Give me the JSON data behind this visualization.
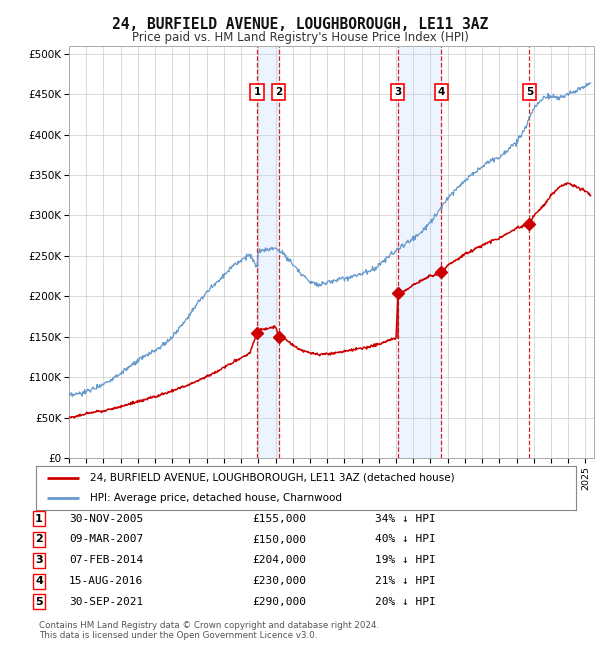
{
  "title": "24, BURFIELD AVENUE, LOUGHBOROUGH, LE11 3AZ",
  "subtitle": "Price paid vs. HM Land Registry's House Price Index (HPI)",
  "xlim_start": 1995.0,
  "xlim_end": 2025.5,
  "ylim_min": 0,
  "ylim_max": 510000,
  "yticks": [
    0,
    50000,
    100000,
    150000,
    200000,
    250000,
    300000,
    350000,
    400000,
    450000,
    500000
  ],
  "ytick_labels": [
    "£0",
    "£50K",
    "£100K",
    "£150K",
    "£200K",
    "£250K",
    "£300K",
    "£350K",
    "£400K",
    "£450K",
    "£500K"
  ],
  "hpi_color": "#6699cc",
  "price_color": "#cc0000",
  "vline_color": "#cc0000",
  "shade_color": "#ddeeff",
  "grid_color": "#cccccc",
  "background_color": "#ffffff",
  "sales": [
    {
      "num": 1,
      "date_str": "30-NOV-2005",
      "price": 155000,
      "pct": "34%",
      "x": 2005.92
    },
    {
      "num": 2,
      "date_str": "09-MAR-2007",
      "price": 150000,
      "pct": "40%",
      "x": 2007.19
    },
    {
      "num": 3,
      "date_str": "07-FEB-2014",
      "price": 204000,
      "pct": "19%",
      "x": 2014.11
    },
    {
      "num": 4,
      "date_str": "15-AUG-2016",
      "price": 230000,
      "pct": "21%",
      "x": 2016.63
    },
    {
      "num": 5,
      "date_str": "30-SEP-2021",
      "price": 290000,
      "pct": "20%",
      "x": 2021.75
    }
  ],
  "legend_line1": "24, BURFIELD AVENUE, LOUGHBOROUGH, LE11 3AZ (detached house)",
  "legend_line2": "HPI: Average price, detached house, Charnwood",
  "footnote1": "Contains HM Land Registry data © Crown copyright and database right 2024.",
  "footnote2": "This data is licensed under the Open Government Licence v3.0.",
  "xtick_years": [
    1995,
    1996,
    1997,
    1998,
    1999,
    2000,
    2001,
    2002,
    2003,
    2004,
    2005,
    2006,
    2007,
    2008,
    2009,
    2010,
    2011,
    2012,
    2013,
    2014,
    2015,
    2016,
    2017,
    2018,
    2019,
    2020,
    2021,
    2022,
    2023,
    2024,
    2025
  ],
  "hpi_xvals": [
    1995,
    1995.5,
    1996,
    1996.5,
    1997,
    1997.5,
    1998,
    1998.5,
    1999,
    1999.5,
    2000,
    2000.5,
    2001,
    2001.5,
    2002,
    2002.5,
    2003,
    2003.5,
    2004,
    2004.5,
    2005,
    2005.5,
    2005.92,
    2006,
    2006.5,
    2007,
    2007.19,
    2007.5,
    2008,
    2008.5,
    2009,
    2009.5,
    2010,
    2010.5,
    2011,
    2011.5,
    2012,
    2012.5,
    2013,
    2013.5,
    2014,
    2014.11,
    2014.5,
    2015,
    2015.5,
    2016,
    2016.5,
    2016.63,
    2017,
    2017.5,
    2018,
    2018.5,
    2019,
    2019.5,
    2020,
    2020.5,
    2021,
    2021.5,
    2021.75,
    2022,
    2022.5,
    2023,
    2023.5,
    2024,
    2024.5,
    2025,
    2025.3
  ],
  "hpi_yvals": [
    77000,
    79000,
    82000,
    87000,
    92000,
    98000,
    105000,
    112000,
    120000,
    127000,
    133000,
    140000,
    150000,
    163000,
    178000,
    192000,
    205000,
    216000,
    226000,
    238000,
    245000,
    252000,
    235000,
    255000,
    258000,
    260000,
    257000,
    252000,
    240000,
    228000,
    218000,
    215000,
    217000,
    220000,
    222000,
    225000,
    228000,
    232000,
    238000,
    248000,
    256000,
    260000,
    264000,
    272000,
    280000,
    292000,
    306000,
    310000,
    322000,
    333000,
    344000,
    352000,
    360000,
    368000,
    372000,
    382000,
    390000,
    408000,
    420000,
    432000,
    445000,
    448000,
    445000,
    450000,
    455000,
    460000,
    465000
  ],
  "price_xvals": [
    1995,
    1995.5,
    1996,
    1996.5,
    1997,
    1997.5,
    1998,
    1998.5,
    1999,
    1999.5,
    2000,
    2000.5,
    2001,
    2001.5,
    2002,
    2002.5,
    2003,
    2003.5,
    2004,
    2004.5,
    2005,
    2005.5,
    2005.92,
    2006,
    2006.5,
    2007,
    2007.19,
    2007.5,
    2008,
    2008.5,
    2009,
    2009.5,
    2010,
    2010.5,
    2011,
    2011.5,
    2012,
    2012.5,
    2013,
    2013.5,
    2014,
    2014.11,
    2014.5,
    2015,
    2015.5,
    2016,
    2016.5,
    2016.63,
    2017,
    2017.5,
    2018,
    2018.5,
    2019,
    2019.5,
    2020,
    2020.5,
    2021,
    2021.5,
    2021.75,
    2022,
    2022.5,
    2023,
    2023.5,
    2024,
    2024.5,
    2025,
    2025.3
  ],
  "price_yvals": [
    50000,
    52000,
    55000,
    57000,
    59000,
    61000,
    64000,
    67000,
    70000,
    73000,
    76000,
    79000,
    83000,
    87000,
    91000,
    96000,
    101000,
    106000,
    112000,
    118000,
    124000,
    130000,
    155000,
    158000,
    160000,
    162000,
    150000,
    148000,
    140000,
    133000,
    130000,
    128000,
    129000,
    130000,
    132000,
    134000,
    136000,
    138000,
    141000,
    145000,
    149000,
    204000,
    207000,
    214000,
    220000,
    225000,
    228000,
    230000,
    238000,
    245000,
    252000,
    258000,
    263000,
    268000,
    272000,
    278000,
    284000,
    288000,
    290000,
    300000,
    310000,
    325000,
    335000,
    340000,
    335000,
    330000,
    325000
  ]
}
